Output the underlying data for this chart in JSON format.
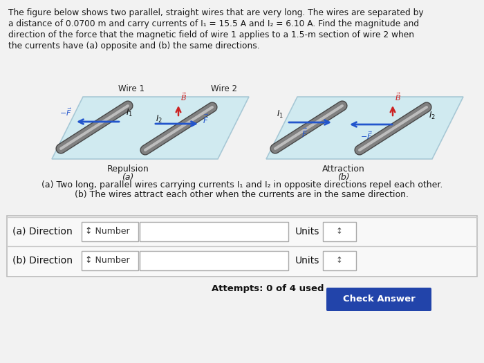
{
  "background_color": "#f0f0f0",
  "panel_color": "#ffffff",
  "text_color": "#1a1a1a",
  "paragraph_line1": "The figure below shows two parallel, straight wires that are very long. The wires are separated by",
  "paragraph_line2": "a distance of 0.0700 m and carry currents of I₁ = 15.5 A and I₂ = 6.10 A. Find the magnitude and",
  "paragraph_line3": "direction of the force that the magnetic field of wire 1 applies to a 1.5-m section of wire 2 when",
  "paragraph_line4": "the currents have (a) opposite and (b) the same directions.",
  "wire1_label": "Wire 1",
  "wire2_label": "Wire 2",
  "repulsion_label": "Repulsion",
  "repulsion_sub": "(a)",
  "attraction_label": "Attraction",
  "attraction_sub": "(b)",
  "caption_a": "(a) Two long, parallel wires carrying currents I₁ and I₂ in opposite directions repel each other.",
  "caption_b": "(b) The wires attract each other when the currents are in the same direction.",
  "row_a_label": "(a) Direction",
  "row_b_label": "(b) Direction",
  "number_label": "↕ Number",
  "units_label": "Units",
  "attempts_text": "Attempts: 0 of 4 used",
  "check_btn_text": "Check Answer",
  "check_btn_color": "#2244aa",
  "plate_color_left": "#c8e8f0",
  "plate_color_right": "#c8e8f0",
  "plate_edge_color": "#9abfcf",
  "wire_body": "#808080",
  "wire_highlight": "#c8c8c8",
  "wire_dark": "#484848",
  "arrow_blue": "#2255cc",
  "arrow_red": "#cc2222",
  "box_border": "#999999",
  "box_bg": "#f5f5f5"
}
